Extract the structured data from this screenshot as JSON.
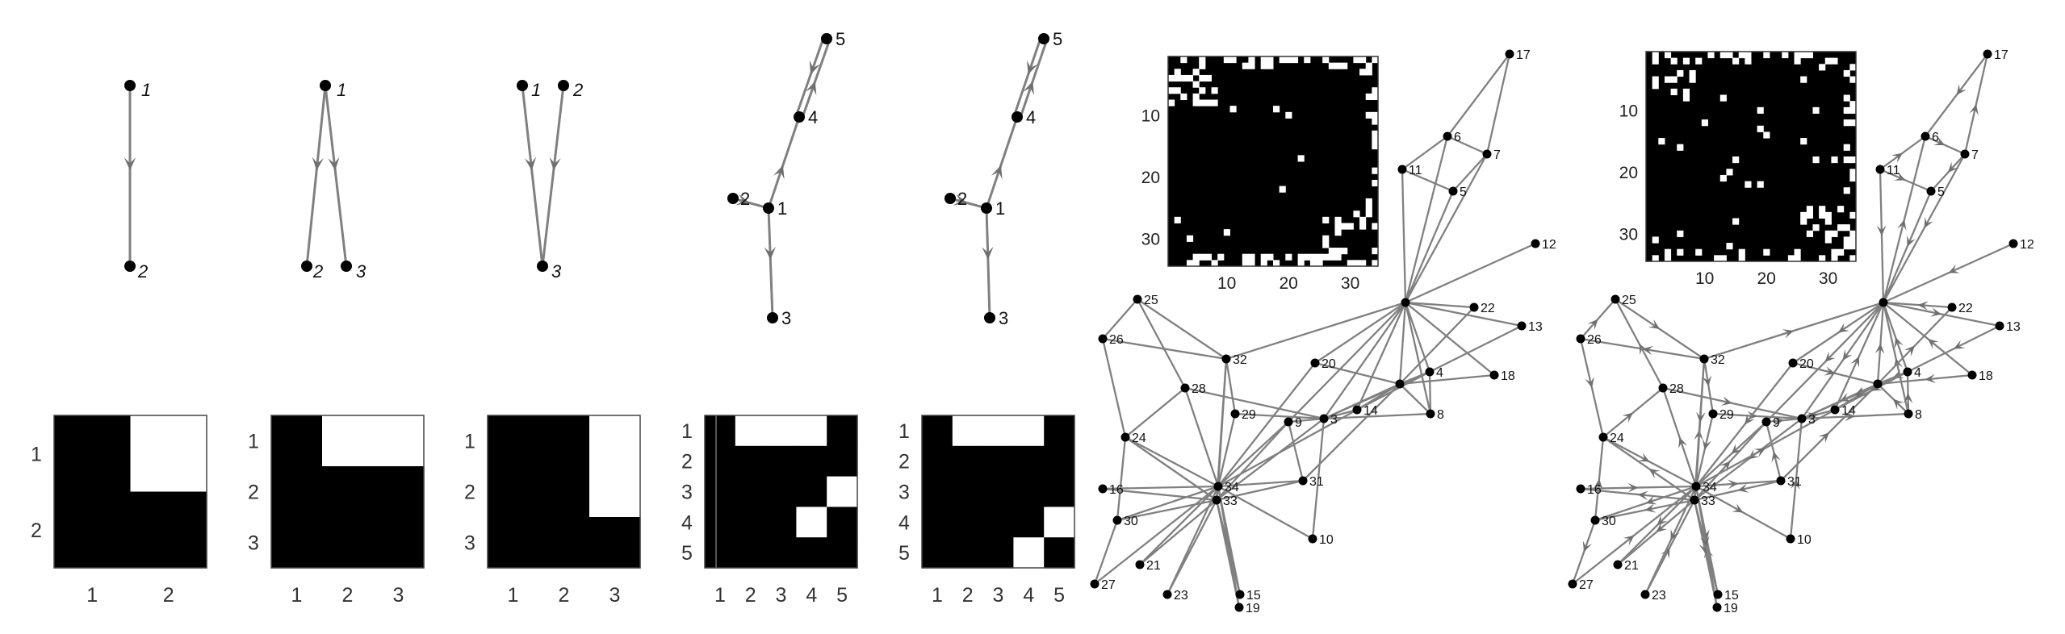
{
  "small_graphs": [
    {
      "nodes": [
        {
          "label": "1",
          "italic": true
        },
        {
          "label": "2",
          "italic": true
        }
      ],
      "edges": [
        [
          0,
          1
        ]
      ],
      "matrix": {
        "rows": [
          [
            1,
            0
          ],
          [
            1,
            1
          ]
        ],
        "row_ticks": [
          "1",
          "2"
        ],
        "col_ticks": [
          "1",
          "2"
        ]
      }
    },
    {
      "nodes": [
        {
          "label": "1",
          "italic": true
        },
        {
          "label": "2",
          "italic": true
        },
        {
          "label": "3",
          "italic": true
        }
      ],
      "edges": [
        [
          0,
          1
        ],
        [
          0,
          2
        ]
      ],
      "matrix": {
        "rows": [
          [
            1,
            0,
            0
          ],
          [
            1,
            1,
            1
          ],
          [
            1,
            1,
            1
          ]
        ],
        "row_ticks": [
          "1",
          "2",
          "3"
        ],
        "col_ticks": [
          "1",
          "2",
          "3"
        ]
      }
    },
    {
      "nodes": [
        {
          "label": "1",
          "italic": true
        },
        {
          "label": "2",
          "italic": true
        },
        {
          "label": "3",
          "italic": true
        }
      ],
      "edges": [
        [
          0,
          2
        ],
        [
          1,
          2
        ]
      ],
      "matrix": {
        "rows": [
          [
            1,
            1,
            0
          ],
          [
            1,
            1,
            0
          ],
          [
            1,
            1,
            1
          ]
        ],
        "row_ticks": [
          "1",
          "2",
          "3"
        ],
        "col_ticks": [
          "1",
          "2",
          "3"
        ]
      }
    },
    {
      "nodes": [
        {
          "label": "1"
        },
        {
          "label": "2"
        },
        {
          "label": "3"
        },
        {
          "label": "4"
        },
        {
          "label": "5"
        }
      ],
      "edges": [
        [
          1,
          0
        ],
        [
          0,
          2
        ],
        [
          0,
          3
        ],
        [
          3,
          4
        ],
        [
          4,
          3
        ]
      ],
      "matrix": {
        "rows": [
          [
            1,
            0,
            0,
            0,
            1
          ],
          [
            1,
            1,
            1,
            1,
            1
          ],
          [
            1,
            1,
            1,
            1,
            0
          ],
          [
            1,
            1,
            1,
            0,
            1
          ],
          [
            1,
            1,
            1,
            1,
            1
          ]
        ],
        "row_ticks": [
          "1",
          "2",
          "3",
          "4",
          "5"
        ],
        "col_ticks": [
          "1",
          "2",
          "3",
          "4",
          "5"
        ]
      }
    },
    {
      "nodes": [
        {
          "label": "1"
        },
        {
          "label": "2"
        },
        {
          "label": "3"
        },
        {
          "label": "4"
        },
        {
          "label": "5"
        }
      ],
      "edges": [
        [
          1,
          0
        ],
        [
          0,
          2
        ],
        [
          0,
          3
        ],
        [
          3,
          4
        ],
        [
          4,
          3
        ]
      ],
      "matrix": {
        "rows": [
          [
            1,
            0,
            0,
            0,
            1
          ],
          [
            1,
            1,
            1,
            1,
            1
          ],
          [
            1,
            1,
            1,
            1,
            1
          ],
          [
            1,
            1,
            1,
            1,
            0
          ],
          [
            1,
            1,
            1,
            0,
            1
          ]
        ],
        "row_ticks": [
          "1",
          "2",
          "3",
          "4",
          "5"
        ],
        "col_ticks": [
          "1",
          "2",
          "3",
          "4",
          "5"
        ]
      }
    }
  ],
  "karate": {
    "nodes": [
      {
        "id": "1",
        "label": ""
      },
      {
        "id": "2",
        "label": ""
      },
      {
        "id": "3",
        "label": "3"
      },
      {
        "id": "4",
        "label": "4"
      },
      {
        "id": "5",
        "label": "5"
      },
      {
        "id": "6",
        "label": "6"
      },
      {
        "id": "7",
        "label": "7"
      },
      {
        "id": "8",
        "label": "8"
      },
      {
        "id": "9",
        "label": "9"
      },
      {
        "id": "10",
        "label": "10"
      },
      {
        "id": "11",
        "label": "11"
      },
      {
        "id": "12",
        "label": "12"
      },
      {
        "id": "13",
        "label": "13"
      },
      {
        "id": "14",
        "label": "14"
      },
      {
        "id": "15",
        "label": "15"
      },
      {
        "id": "16",
        "label": "16"
      },
      {
        "id": "17",
        "label": "17"
      },
      {
        "id": "18",
        "label": "18"
      },
      {
        "id": "19",
        "label": "19"
      },
      {
        "id": "20",
        "label": "20"
      },
      {
        "id": "21",
        "label": "21"
      },
      {
        "id": "22",
        "label": "22"
      },
      {
        "id": "23",
        "label": "23"
      },
      {
        "id": "24",
        "label": "24"
      },
      {
        "id": "25",
        "label": "25"
      },
      {
        "id": "26",
        "label": "26"
      },
      {
        "id": "27",
        "label": "27"
      },
      {
        "id": "28",
        "label": "28"
      },
      {
        "id": "29",
        "label": "29"
      },
      {
        "id": "30",
        "label": "30"
      },
      {
        "id": "31",
        "label": "31"
      },
      {
        "id": "32",
        "label": "32"
      },
      {
        "id": "33",
        "label": "33"
      },
      {
        "id": "34",
        "label": "34"
      }
    ],
    "edges": [
      [
        1,
        2
      ],
      [
        1,
        3
      ],
      [
        1,
        4
      ],
      [
        1,
        5
      ],
      [
        1,
        6
      ],
      [
        1,
        7
      ],
      [
        1,
        8
      ],
      [
        1,
        9
      ],
      [
        1,
        11
      ],
      [
        1,
        12
      ],
      [
        1,
        13
      ],
      [
        1,
        14
      ],
      [
        1,
        18
      ],
      [
        1,
        20
      ],
      [
        1,
        22
      ],
      [
        1,
        32
      ],
      [
        2,
        3
      ],
      [
        2,
        4
      ],
      [
        2,
        8
      ],
      [
        2,
        14
      ],
      [
        2,
        18
      ],
      [
        2,
        20
      ],
      [
        2,
        22
      ],
      [
        2,
        31
      ],
      [
        3,
        4
      ],
      [
        3,
        8
      ],
      [
        3,
        9
      ],
      [
        3,
        10
      ],
      [
        3,
        14
      ],
      [
        3,
        28
      ],
      [
        3,
        29
      ],
      [
        3,
        33
      ],
      [
        4,
        8
      ],
      [
        4,
        13
      ],
      [
        4,
        14
      ],
      [
        5,
        7
      ],
      [
        5,
        11
      ],
      [
        6,
        7
      ],
      [
        6,
        11
      ],
      [
        6,
        17
      ],
      [
        7,
        17
      ],
      [
        9,
        31
      ],
      [
        9,
        33
      ],
      [
        9,
        34
      ],
      [
        10,
        34
      ],
      [
        14,
        34
      ],
      [
        15,
        33
      ],
      [
        15,
        34
      ],
      [
        16,
        33
      ],
      [
        16,
        34
      ],
      [
        19,
        33
      ],
      [
        19,
        34
      ],
      [
        20,
        34
      ],
      [
        21,
        33
      ],
      [
        21,
        34
      ],
      [
        23,
        33
      ],
      [
        23,
        34
      ],
      [
        24,
        26
      ],
      [
        24,
        28
      ],
      [
        24,
        30
      ],
      [
        24,
        33
      ],
      [
        24,
        34
      ],
      [
        25,
        26
      ],
      [
        25,
        28
      ],
      [
        25,
        32
      ],
      [
        26,
        32
      ],
      [
        27,
        30
      ],
      [
        27,
        34
      ],
      [
        28,
        34
      ],
      [
        29,
        32
      ],
      [
        29,
        34
      ],
      [
        30,
        33
      ],
      [
        30,
        34
      ],
      [
        31,
        33
      ],
      [
        31,
        34
      ],
      [
        32,
        33
      ],
      [
        32,
        34
      ],
      [
        33,
        34
      ]
    ],
    "inset": {
      "ticks": [
        "10",
        "20",
        "30"
      ]
    }
  }
}
